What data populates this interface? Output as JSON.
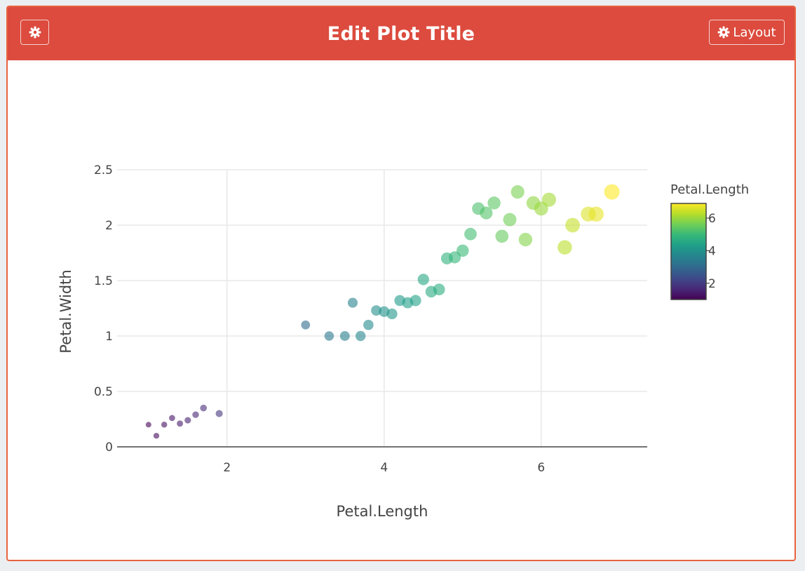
{
  "header": {
    "title": "Edit Plot Title",
    "settings_icon": "gear-icon",
    "layout_label": "Layout",
    "layout_icon": "gear-icon",
    "background_color": "#dc4b3e"
  },
  "chart_data": {
    "type": "scatter",
    "xlabel": "Petal.Length",
    "ylabel": "Petal.Width",
    "xlim": [
      0.6,
      7.35
    ],
    "ylim": [
      0,
      2.5
    ],
    "x_ticks": [
      2,
      4,
      6
    ],
    "y_ticks": [
      0,
      0.5,
      1,
      1.5,
      2,
      2.5
    ],
    "y_tick_labels": [
      "0",
      "0.5",
      "1",
      "1.5",
      "2",
      "2.5"
    ],
    "grid": true,
    "marker_size_and_color_by": "Petal.Length",
    "colorscale": "viridis",
    "colorbar": {
      "title": "Petal.Length",
      "range": [
        1,
        6.9
      ],
      "ticks": [
        2,
        4,
        6
      ],
      "placement": "right"
    },
    "points": [
      {
        "x": 1.0,
        "y": 0.2
      },
      {
        "x": 1.1,
        "y": 0.1
      },
      {
        "x": 1.2,
        "y": 0.2
      },
      {
        "x": 1.3,
        "y": 0.26
      },
      {
        "x": 1.4,
        "y": 0.21
      },
      {
        "x": 1.5,
        "y": 0.24
      },
      {
        "x": 1.6,
        "y": 0.29
      },
      {
        "x": 1.7,
        "y": 0.35
      },
      {
        "x": 1.9,
        "y": 0.3
      },
      {
        "x": 3.0,
        "y": 1.1
      },
      {
        "x": 3.3,
        "y": 1.0
      },
      {
        "x": 3.5,
        "y": 1.0
      },
      {
        "x": 3.6,
        "y": 1.3
      },
      {
        "x": 3.7,
        "y": 1.0
      },
      {
        "x": 3.8,
        "y": 1.1
      },
      {
        "x": 3.9,
        "y": 1.23
      },
      {
        "x": 4.0,
        "y": 1.22
      },
      {
        "x": 4.1,
        "y": 1.2
      },
      {
        "x": 4.2,
        "y": 1.32
      },
      {
        "x": 4.3,
        "y": 1.3
      },
      {
        "x": 4.4,
        "y": 1.32
      },
      {
        "x": 4.5,
        "y": 1.51
      },
      {
        "x": 4.6,
        "y": 1.4
      },
      {
        "x": 4.7,
        "y": 1.42
      },
      {
        "x": 4.8,
        "y": 1.7
      },
      {
        "x": 4.9,
        "y": 1.71
      },
      {
        "x": 5.0,
        "y": 1.77
      },
      {
        "x": 5.1,
        "y": 1.92
      },
      {
        "x": 5.2,
        "y": 2.15
      },
      {
        "x": 5.3,
        "y": 2.11
      },
      {
        "x": 5.4,
        "y": 2.2
      },
      {
        "x": 5.5,
        "y": 1.9
      },
      {
        "x": 5.6,
        "y": 2.05
      },
      {
        "x": 5.7,
        "y": 2.3
      },
      {
        "x": 5.8,
        "y": 1.87
      },
      {
        "x": 5.9,
        "y": 2.2
      },
      {
        "x": 6.0,
        "y": 2.15
      },
      {
        "x": 6.1,
        "y": 2.23
      },
      {
        "x": 6.3,
        "y": 1.8
      },
      {
        "x": 6.4,
        "y": 2.0
      },
      {
        "x": 6.6,
        "y": 2.1
      },
      {
        "x": 6.7,
        "y": 2.1
      },
      {
        "x": 6.9,
        "y": 2.3
      }
    ]
  }
}
